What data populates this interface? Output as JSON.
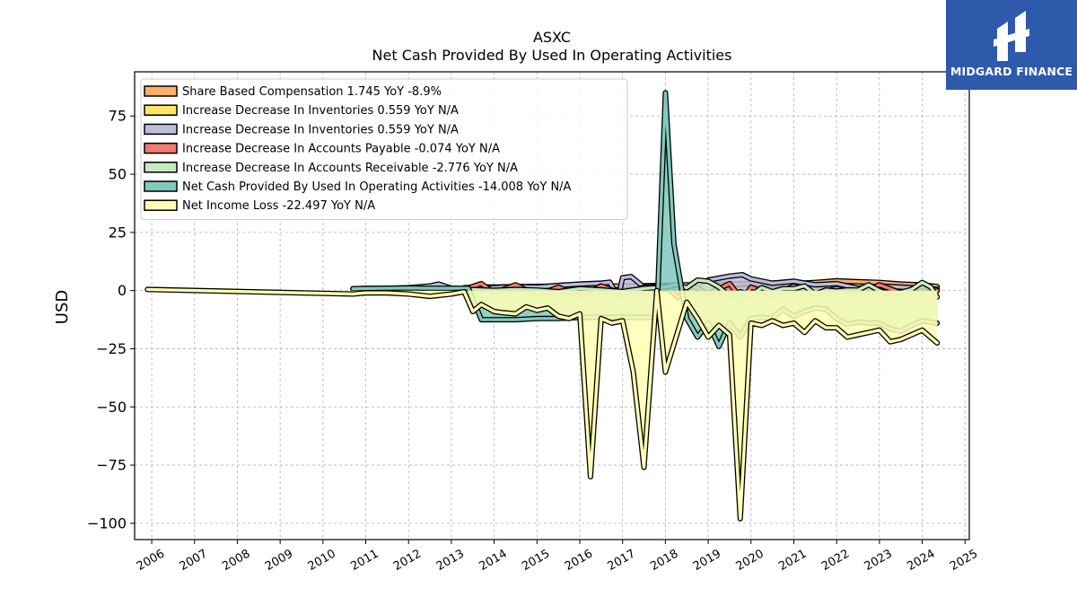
{
  "brand": {
    "name": "MIDGARD FINANCE",
    "bg_color": "#2e5aac"
  },
  "chart_data": {
    "type": "area",
    "title": "ASXC",
    "subtitle": "Net Cash Provided By Used In Operating Activities",
    "xlabel": "",
    "ylabel": "USD",
    "xlim": [
      2005.6,
      2025.1
    ],
    "ylim": [
      -107,
      94
    ],
    "grid": true,
    "legend_position": "top-left",
    "x_ticks": [
      2006,
      2007,
      2008,
      2009,
      2010,
      2011,
      2012,
      2013,
      2014,
      2015,
      2016,
      2017,
      2018,
      2019,
      2020,
      2021,
      2022,
      2023,
      2024,
      2025
    ],
    "y_ticks": [
      75,
      50,
      25,
      0,
      -25,
      -50,
      -75,
      -100
    ],
    "y_tick_labels": [
      "75",
      "50",
      "25",
      "0",
      "−25",
      "−50",
      "−75",
      "−100"
    ],
    "series": [
      {
        "name": "Share Based Compensation",
        "legend_label": "Share Based Compensation  1.745 YoY -8.9%",
        "color": "#fdae6b",
        "x": [
          2013.3,
          2013.7,
          2014.0,
          2014.5,
          2015.0,
          2015.5,
          2016.0,
          2016.5,
          2017.0,
          2017.5,
          2018.0,
          2018.5,
          2019.0,
          2019.5,
          2020.0,
          2020.5,
          2021.0,
          2021.5,
          2022.0,
          2022.5,
          2023.0,
          2023.5,
          2024.0,
          2024.35
        ],
        "y": [
          1.2,
          1.6,
          1.5,
          1.7,
          1.8,
          1.9,
          1.9,
          2.0,
          1.9,
          2.1,
          2.3,
          2.5,
          2.3,
          2.8,
          3.0,
          3.2,
          3.0,
          3.5,
          4.2,
          3.8,
          3.5,
          2.8,
          2.4,
          1.745
        ]
      },
      {
        "name": "Increase Decrease In Inventories",
        "legend_label": "Increase Decrease In Inventories  0.559 YoY N/A",
        "color": "#ffe566",
        "x": [
          2013.3,
          2014.0,
          2015.0,
          2016.0,
          2017.0,
          2018.0,
          2019.0,
          2020.0,
          2021.0,
          2022.0,
          2023.0,
          2024.0,
          2024.35
        ],
        "y": [
          0.2,
          0.4,
          0.1,
          0.6,
          0.3,
          0.8,
          0.5,
          0.9,
          0.4,
          0.7,
          0.3,
          0.6,
          0.559
        ]
      },
      {
        "name": "Increase Decrease In Inventories",
        "legend_label": "Increase Decrease In Inventories  0.559 YoY N/A",
        "color": "#bcbddc",
        "x": [
          2010.7,
          2011.0,
          2011.5,
          2012.0,
          2012.5,
          2012.7,
          2013.0,
          2013.5,
          2014.0,
          2014.5,
          2015.0,
          2015.5,
          2016.0,
          2016.5,
          2016.7,
          2016.9,
          2017.0,
          2017.2,
          2017.5,
          2018.0,
          2018.5,
          2019.0,
          2019.5,
          2019.8,
          2020.0,
          2020.5,
          2021.0,
          2021.5,
          2022.0,
          2022.5,
          2023.0,
          2023.5,
          2024.0,
          2024.35
        ],
        "y": [
          0.8,
          0.9,
          1.0,
          1.2,
          2.0,
          2.8,
          1.0,
          0.6,
          1.2,
          1.8,
          1.5,
          2.2,
          2.8,
          3.2,
          3.6,
          -3.0,
          5.5,
          6.0,
          1.5,
          2.0,
          1.0,
          4.5,
          6.2,
          6.8,
          5.0,
          3.2,
          4.0,
          2.5,
          3.0,
          1.0,
          2.0,
          1.5,
          1.0,
          0.559
        ]
      },
      {
        "name": "Increase Decrease In Accounts Payable",
        "legend_label": "Increase Decrease In Accounts Payable  -0.074 YoY N/A",
        "color": "#f07b6e",
        "x": [
          2013.3,
          2013.7,
          2014.0,
          2014.5,
          2015.0,
          2015.5,
          2016.0,
          2016.5,
          2017.0,
          2017.5,
          2018.0,
          2018.3,
          2018.6,
          2019.0,
          2019.5,
          2019.8,
          2020.0,
          2020.5,
          2021.0,
          2021.5,
          2022.0,
          2022.5,
          2023.0,
          2023.5,
          2024.0,
          2024.35
        ],
        "y": [
          0.5,
          3.0,
          -1.0,
          2.5,
          -2.0,
          1.5,
          -2.5,
          2.0,
          -1.5,
          1.5,
          2.0,
          -3.0,
          2.5,
          -1.5,
          3.0,
          -4.0,
          1.5,
          -2.0,
          2.0,
          -1.5,
          1.0,
          -2.0,
          2.5,
          -1.0,
          2.0,
          -0.074
        ]
      },
      {
        "name": "Increase Decrease In Accounts Receivable",
        "legend_label": "Increase Decrease In Accounts Receivable  -2.776 YoY N/A",
        "color": "#c7e9c0",
        "x": [
          2013.3,
          2013.5,
          2014.0,
          2014.5,
          2015.0,
          2015.5,
          2016.0,
          2016.5,
          2017.0,
          2017.5,
          2018.0,
          2018.25,
          2018.5,
          2018.75,
          2019.0,
          2019.25,
          2019.5,
          2019.75,
          2020.0,
          2020.25,
          2020.5,
          2020.75,
          2021.0,
          2021.25,
          2021.5,
          2021.75,
          2022.0,
          2022.25,
          2022.5,
          2022.75,
          2023.0,
          2023.25,
          2023.5,
          2023.75,
          2024.0,
          2024.2,
          2024.35
        ],
        "y": [
          0.2,
          0.4,
          0.1,
          0.5,
          0.2,
          -0.5,
          0.8,
          0.3,
          -0.4,
          0.9,
          1.5,
          2.5,
          1.2,
          4.5,
          4.0,
          1.5,
          -2.5,
          -0.5,
          -2.0,
          1.2,
          -0.5,
          0.8,
          0.8,
          2.0,
          -1.5,
          0.2,
          -0.2,
          0.3,
          0.2,
          2.5,
          0.0,
          -1.8,
          -0.8,
          0.5,
          3.5,
          1.5,
          -2.776
        ]
      },
      {
        "name": "Net Cash Provided By Used In Operating Activities",
        "legend_label": "Net Cash Provided By Used In Operating Activities  -14.008 YoY N/A",
        "color": "#80c9bc",
        "x": [
          2010.7,
          2011.0,
          2011.5,
          2012.0,
          2012.5,
          2013.0,
          2013.4,
          2013.7,
          2014.0,
          2014.5,
          2015.0,
          2015.5,
          2016.0,
          2016.5,
          2017.0,
          2017.5,
          2017.8,
          2018.0,
          2018.2,
          2018.5,
          2018.75,
          2019.0,
          2019.25,
          2019.5,
          2019.75,
          2020.0,
          2020.25,
          2020.5,
          2020.75,
          2021.0,
          2021.25,
          2021.5,
          2021.75,
          2022.0,
          2022.25,
          2022.5,
          2022.75,
          2023.0,
          2023.25,
          2023.5,
          2023.75,
          2024.0,
          2024.35
        ],
        "y": [
          0.8,
          0.9,
          1.0,
          1.1,
          1.0,
          1.0,
          1.0,
          -12.5,
          -12.5,
          -12.5,
          -12.0,
          -12.0,
          -11.5,
          -11.5,
          -11.5,
          -11.5,
          -11.5,
          85.0,
          20.0,
          -12.0,
          -20.0,
          -14.0,
          -24.0,
          -14.0,
          -20.0,
          -12.0,
          -11.5,
          -12.0,
          -8.0,
          -11.0,
          -9.0,
          -7.5,
          -8.0,
          -12.0,
          -14.5,
          -13.5,
          -14.0,
          -14.0,
          -16.5,
          -17.5,
          -15.0,
          -13.0,
          -14.008
        ]
      },
      {
        "name": "Net Income Loss",
        "legend_label": "Net Income Loss  -22.497 YoY N/A",
        "color": "#ffffb3",
        "x": [
          2005.9,
          2010.7,
          2011.0,
          2011.5,
          2012.0,
          2012.5,
          2013.0,
          2013.3,
          2013.5,
          2013.7,
          2014.0,
          2014.2,
          2014.5,
          2014.75,
          2015.0,
          2015.25,
          2015.5,
          2015.75,
          2016.0,
          2016.25,
          2016.5,
          2016.75,
          2017.0,
          2017.25,
          2017.5,
          2017.8,
          2018.0,
          2018.25,
          2018.5,
          2018.75,
          2019.0,
          2019.25,
          2019.5,
          2019.75,
          2020.0,
          2020.25,
          2020.5,
          2020.75,
          2021.0,
          2021.25,
          2021.5,
          2021.75,
          2022.0,
          2022.25,
          2022.5,
          2022.75,
          2023.0,
          2023.25,
          2023.5,
          2023.75,
          2024.0,
          2024.35
        ],
        "y": [
          0.5,
          -1.5,
          -1.0,
          -1.0,
          -1.5,
          -2.5,
          -1.5,
          -0.5,
          -9.0,
          -6.0,
          -9.0,
          -9.5,
          -10.0,
          -7.0,
          -8.5,
          -7.5,
          -11.0,
          -12.0,
          -10.0,
          -80.0,
          -12.0,
          -14.0,
          -13.0,
          -35.0,
          -76.0,
          0.0,
          -35.0,
          -20.0,
          -5.0,
          -12.0,
          -20.0,
          -15.0,
          -19.0,
          -98.0,
          -14.0,
          -15.0,
          -13.0,
          -15.0,
          -14.0,
          -18.0,
          -13.0,
          -16.0,
          -16.0,
          -20.0,
          -19.0,
          -18.0,
          -17.0,
          -22.0,
          -21.0,
          -19.0,
          -17.0,
          -22.497
        ]
      }
    ]
  }
}
